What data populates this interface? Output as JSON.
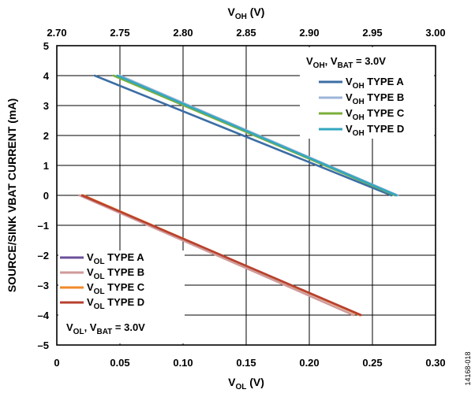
{
  "chart_data": {
    "type": "line",
    "figure_id": "14168-018",
    "y_axis": {
      "label": "SOURCE/SINK VBAT CURRENT (mA)",
      "range": [
        -5,
        5
      ],
      "ticks": [
        "–5",
        "–4",
        "–3",
        "–2",
        "–1",
        "0",
        "1",
        "2",
        "3",
        "4",
        "5"
      ],
      "grid": true
    },
    "x_axis_top": {
      "label_main": "V",
      "label_sub": "OH",
      "label_suffix": " (V)",
      "range": [
        2.7,
        3.0
      ],
      "ticks": [
        "2.70",
        "2.75",
        "2.80",
        "2.85",
        "2.90",
        "2.95",
        "3.00"
      ]
    },
    "x_axis_bottom": {
      "label_main": "V",
      "label_sub": "OL",
      "label_suffix": " (V)",
      "range": [
        0,
        0.3
      ],
      "ticks": [
        "0",
        "0.05",
        "0.10",
        "0.15",
        "0.20",
        "0.25",
        "0.30"
      ]
    },
    "annotations": [
      {
        "main": "V",
        "sub": "OH",
        "text": ", V",
        "sub2": "BAT",
        "tail": " = 3.0V"
      },
      {
        "main": "V",
        "sub": "OL",
        "text": ", V",
        "sub2": "BAT",
        "tail": " = 3.0V"
      }
    ],
    "legend_top_right": [
      {
        "main": "V",
        "sub": "OH",
        "tail": " TYPE A",
        "color": "#3c6ea5"
      },
      {
        "main": "V",
        "sub": "OH",
        "tail": " TYPE B",
        "color": "#9db4d8"
      },
      {
        "main": "V",
        "sub": "OH",
        "tail": " TYPE C",
        "color": "#7aae3a"
      },
      {
        "main": "V",
        "sub": "OH",
        "tail": " TYPE D",
        "color": "#33a7bf"
      }
    ],
    "legend_bottom_left": [
      {
        "main": "V",
        "sub": "OL",
        "tail": " TYPE A",
        "color": "#6b4f9b"
      },
      {
        "main": "V",
        "sub": "OL",
        "tail": " TYPE B",
        "color": "#d09a9a"
      },
      {
        "main": "V",
        "sub": "OL",
        "tail": " TYPE C",
        "color": "#f08a2a"
      },
      {
        "main": "V",
        "sub": "OL",
        "tail": " TYPE D",
        "color": "#b8402f"
      }
    ],
    "series": [
      {
        "name": "VOH TYPE A",
        "axis": "top",
        "color": "#3c6ea5",
        "x": [
          2.73,
          2.965
        ],
        "y": [
          4,
          0
        ]
      },
      {
        "name": "VOH TYPE B",
        "axis": "top",
        "color": "#9db4d8",
        "x": [
          2.75,
          2.97
        ],
        "y": [
          4,
          0
        ]
      },
      {
        "name": "VOH TYPE C",
        "axis": "top",
        "color": "#7aae3a",
        "x": [
          2.745,
          2.968
        ],
        "y": [
          4,
          0
        ]
      },
      {
        "name": "VOH TYPE D",
        "axis": "top",
        "color": "#33a7bf",
        "x": [
          2.748,
          2.969
        ],
        "y": [
          4,
          0
        ]
      },
      {
        "name": "VOL TYPE A",
        "axis": "bottom",
        "color": "#6b4f9b",
        "x": [
          0.02,
          0.24
        ],
        "y": [
          0,
          -4
        ]
      },
      {
        "name": "VOL TYPE B",
        "axis": "bottom",
        "color": "#d09a9a",
        "x": [
          0.018,
          0.235
        ],
        "y": [
          0,
          -4
        ]
      },
      {
        "name": "VOL TYPE C",
        "axis": "bottom",
        "color": "#f08a2a",
        "x": [
          0.021,
          0.24
        ],
        "y": [
          0,
          -4
        ]
      },
      {
        "name": "VOL TYPE D",
        "axis": "bottom",
        "color": "#b8402f",
        "x": [
          0.02,
          0.241
        ],
        "y": [
          0,
          -4
        ]
      }
    ]
  }
}
